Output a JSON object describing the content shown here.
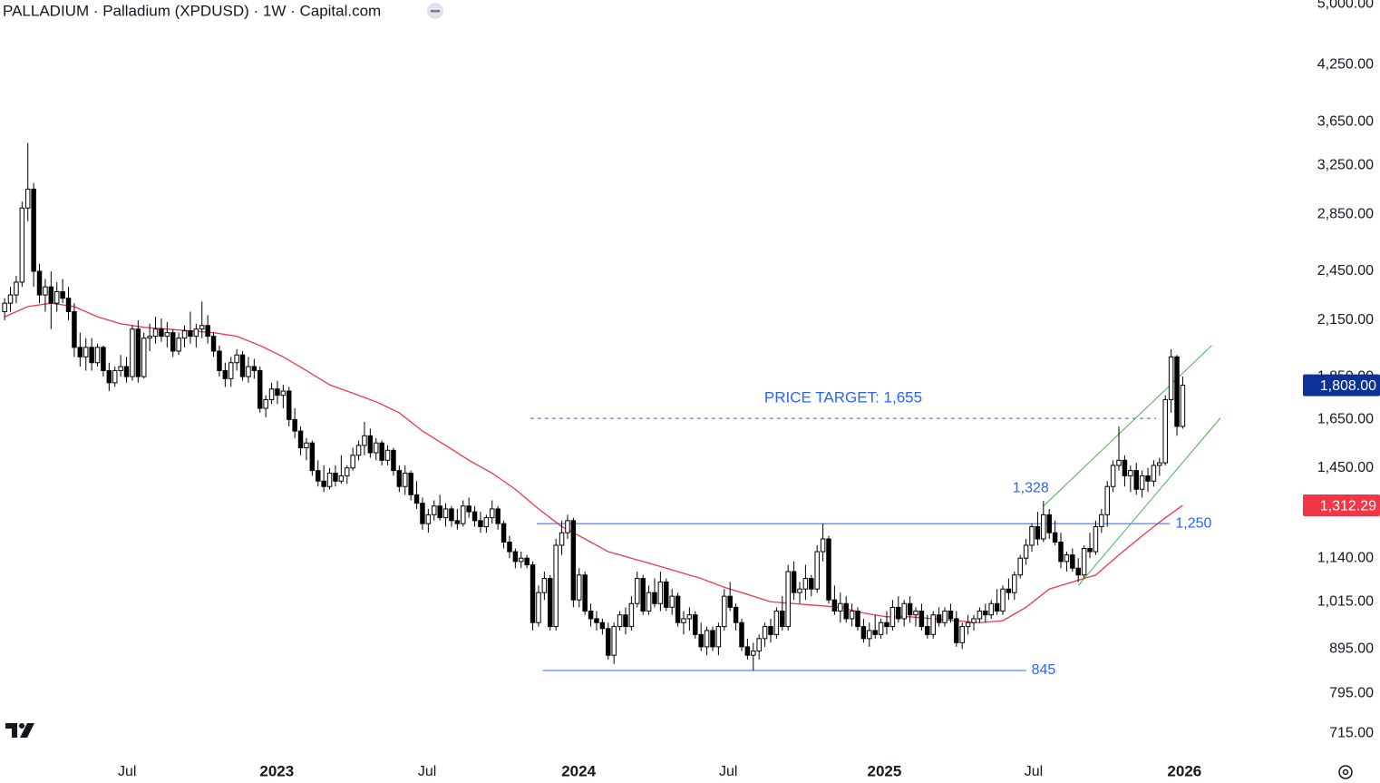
{
  "chart_data": {
    "type": "candlestick",
    "title": "PALLADIUM · Palladium (XPDUSD) · 1W · Capital.com",
    "log_scale": true,
    "up_color": "#ffffff",
    "down_color": "#000000",
    "wick_color": "#000000",
    "xlim": [
      -0.8,
      223.4
    ],
    "ylim": [
      678,
      5050
    ],
    "xticks": [
      {
        "value": 21.1,
        "label": "Jul"
      },
      {
        "value": 46.9,
        "label": "2023"
      },
      {
        "value": 72.8,
        "label": "Jul"
      },
      {
        "value": 98.9,
        "label": "2024"
      },
      {
        "value": 124.7,
        "label": "Jul"
      },
      {
        "value": 151.6,
        "label": "2025"
      },
      {
        "value": 177.3,
        "label": "Jul"
      },
      {
        "value": 203.3,
        "label": "2026"
      }
    ],
    "yticks": [
      {
        "value": 715,
        "label": "715.00"
      },
      {
        "value": 795,
        "label": "795.00"
      },
      {
        "value": 895,
        "label": "895.00"
      },
      {
        "value": 1015,
        "label": "1,015.00"
      },
      {
        "value": 1140,
        "label": "1,140.00"
      },
      {
        "value": 1450,
        "label": "1,450.00"
      },
      {
        "value": 1650,
        "label": "1,650.00"
      },
      {
        "value": 1850,
        "label": "1,850.00"
      },
      {
        "value": 2150,
        "label": "2,150.00"
      },
      {
        "value": 2450,
        "label": "2,450.00"
      },
      {
        "value": 2850,
        "label": "2,850.00"
      },
      {
        "value": 3250,
        "label": "3,250.00"
      },
      {
        "value": 3650,
        "label": "3,650.00"
      },
      {
        "value": 4250,
        "label": "4,250.00"
      },
      {
        "value": 5000,
        "label": "5,000.00"
      }
    ],
    "candles": [
      [
        2200,
        2280,
        2150,
        2250
      ],
      [
        2250,
        2350,
        2200,
        2300
      ],
      [
        2300,
        2420,
        2250,
        2380
      ],
      [
        2380,
        2950,
        2350,
        2900
      ],
      [
        2900,
        3450,
        2800,
        3050
      ],
      [
        3050,
        3100,
        2350,
        2450
      ],
      [
        2450,
        2500,
        2250,
        2300
      ],
      [
        2300,
        2400,
        2200,
        2350
      ],
      [
        2350,
        2450,
        2100,
        2250
      ],
      [
        2250,
        2380,
        2200,
        2320
      ],
      [
        2320,
        2400,
        2250,
        2280
      ],
      [
        2280,
        2350,
        2150,
        2200
      ],
      [
        2200,
        2250,
        1950,
        2000
      ],
      [
        2000,
        2080,
        1900,
        1950
      ],
      [
        1950,
        2050,
        1880,
        2000
      ],
      [
        2000,
        2050,
        1880,
        1920
      ],
      [
        1920,
        2020,
        1900,
        2000
      ],
      [
        2000,
        2010,
        1850,
        1880
      ],
      [
        1880,
        1920,
        1780,
        1820
      ],
      [
        1820,
        1900,
        1800,
        1880
      ],
      [
        1880,
        1960,
        1850,
        1900
      ],
      [
        1900,
        1950,
        1820,
        1850
      ],
      [
        1850,
        2120,
        1830,
        2100
      ],
      [
        2100,
        2150,
        1820,
        1850
      ],
      [
        1850,
        2080,
        1840,
        2050
      ],
      [
        2050,
        2130,
        1980,
        2060
      ],
      [
        2060,
        2170,
        2020,
        2100
      ],
      [
        2100,
        2160,
        2030,
        2060
      ],
      [
        2060,
        2140,
        2000,
        2080
      ],
      [
        2080,
        2100,
        1950,
        1980
      ],
      [
        1980,
        2080,
        1960,
        2050
      ],
      [
        2050,
        2120,
        2000,
        2090
      ],
      [
        2090,
        2200,
        2020,
        2060
      ],
      [
        2060,
        2130,
        2000,
        2100
      ],
      [
        2100,
        2260,
        2050,
        2120
      ],
      [
        2120,
        2180,
        2020,
        2060
      ],
      [
        2060,
        2080,
        1950,
        1980
      ],
      [
        1980,
        2010,
        1850,
        1880
      ],
      [
        1880,
        1920,
        1800,
        1840
      ],
      [
        1840,
        1950,
        1800,
        1920
      ],
      [
        1920,
        1990,
        1880,
        1960
      ],
      [
        1960,
        1980,
        1830,
        1850
      ],
      [
        1850,
        1950,
        1820,
        1900
      ],
      [
        1900,
        1940,
        1840,
        1880
      ],
      [
        1880,
        1900,
        1680,
        1700
      ],
      [
        1700,
        1760,
        1660,
        1740
      ],
      [
        1740,
        1820,
        1720,
        1790
      ],
      [
        1790,
        1830,
        1720,
        1760
      ],
      [
        1760,
        1810,
        1700,
        1780
      ],
      [
        1780,
        1800,
        1620,
        1650
      ],
      [
        1650,
        1700,
        1570,
        1600
      ],
      [
        1600,
        1620,
        1500,
        1530
      ],
      [
        1530,
        1570,
        1480,
        1550
      ],
      [
        1550,
        1560,
        1420,
        1440
      ],
      [
        1440,
        1480,
        1380,
        1400
      ],
      [
        1400,
        1460,
        1360,
        1380
      ],
      [
        1380,
        1450,
        1370,
        1430
      ],
      [
        1430,
        1460,
        1380,
        1400
      ],
      [
        1400,
        1500,
        1390,
        1420
      ],
      [
        1420,
        1460,
        1390,
        1450
      ],
      [
        1450,
        1530,
        1440,
        1500
      ],
      [
        1500,
        1560,
        1480,
        1540
      ],
      [
        1540,
        1640,
        1500,
        1580
      ],
      [
        1580,
        1610,
        1490,
        1510
      ],
      [
        1510,
        1570,
        1480,
        1550
      ],
      [
        1550,
        1560,
        1460,
        1480
      ],
      [
        1480,
        1540,
        1460,
        1520
      ],
      [
        1520,
        1530,
        1420,
        1440
      ],
      [
        1440,
        1460,
        1360,
        1380
      ],
      [
        1380,
        1460,
        1350,
        1430
      ],
      [
        1430,
        1440,
        1330,
        1350
      ],
      [
        1350,
        1400,
        1300,
        1320
      ],
      [
        1320,
        1340,
        1230,
        1250
      ],
      [
        1250,
        1300,
        1220,
        1280
      ],
      [
        1280,
        1330,
        1260,
        1310
      ],
      [
        1310,
        1350,
        1260,
        1270
      ],
      [
        1270,
        1320,
        1240,
        1300
      ],
      [
        1300,
        1310,
        1240,
        1260
      ],
      [
        1260,
        1300,
        1230,
        1250
      ],
      [
        1250,
        1330,
        1240,
        1310
      ],
      [
        1310,
        1340,
        1270,
        1290
      ],
      [
        1290,
        1310,
        1240,
        1260
      ],
      [
        1260,
        1290,
        1220,
        1240
      ],
      [
        1240,
        1280,
        1220,
        1270
      ],
      [
        1270,
        1330,
        1250,
        1300
      ],
      [
        1300,
        1310,
        1230,
        1250
      ],
      [
        1250,
        1260,
        1170,
        1190
      ],
      [
        1190,
        1210,
        1140,
        1160
      ],
      [
        1160,
        1170,
        1110,
        1130
      ],
      [
        1130,
        1160,
        1110,
        1140
      ],
      [
        1140,
        1150,
        1110,
        1120
      ],
      [
        1120,
        1130,
        940,
        960
      ],
      [
        960,
        1060,
        950,
        1040
      ],
      [
        1040,
        1100,
        1020,
        1080
      ],
      [
        1080,
        1090,
        940,
        950
      ],
      [
        950,
        1200,
        940,
        1180
      ],
      [
        1180,
        1260,
        1150,
        1220
      ],
      [
        1220,
        1280,
        1200,
        1260
      ],
      [
        1260,
        1270,
        1000,
        1020
      ],
      [
        1020,
        1110,
        1000,
        1090
      ],
      [
        1090,
        1100,
        980,
        990
      ],
      [
        990,
        1010,
        950,
        970
      ],
      [
        970,
        990,
        940,
        960
      ],
      [
        960,
        970,
        930,
        945
      ],
      [
        945,
        960,
        870,
        880
      ],
      [
        880,
        960,
        860,
        950
      ],
      [
        950,
        990,
        940,
        980
      ],
      [
        980,
        1000,
        930,
        950
      ],
      [
        950,
        1030,
        940,
        1010
      ],
      [
        1010,
        1100,
        1000,
        1080
      ],
      [
        1080,
        1090,
        980,
        990
      ],
      [
        990,
        1060,
        980,
        1040
      ],
      [
        1040,
        1080,
        1000,
        1010
      ],
      [
        1010,
        1100,
        990,
        1070
      ],
      [
        1070,
        1080,
        990,
        1000
      ],
      [
        1000,
        1050,
        980,
        1030
      ],
      [
        1030,
        1040,
        950,
        960
      ],
      [
        960,
        990,
        930,
        970
      ],
      [
        970,
        1000,
        940,
        980
      ],
      [
        980,
        990,
        920,
        930
      ],
      [
        930,
        960,
        890,
        900
      ],
      [
        900,
        950,
        880,
        940
      ],
      [
        940,
        950,
        890,
        900
      ],
      [
        900,
        960,
        880,
        950
      ],
      [
        950,
        1050,
        940,
        1030
      ],
      [
        1030,
        1070,
        990,
        1000
      ],
      [
        1000,
        1010,
        940,
        960
      ],
      [
        960,
        970,
        890,
        900
      ],
      [
        900,
        920,
        870,
        880
      ],
      [
        880,
        910,
        845,
        890
      ],
      [
        890,
        930,
        870,
        920
      ],
      [
        920,
        960,
        900,
        950
      ],
      [
        950,
        970,
        910,
        930
      ],
      [
        930,
        1000,
        920,
        990
      ],
      [
        990,
        1030,
        940,
        950
      ],
      [
        950,
        1120,
        940,
        1100
      ],
      [
        1100,
        1130,
        1020,
        1040
      ],
      [
        1040,
        1070,
        1010,
        1050
      ],
      [
        1050,
        1120,
        1020,
        1080
      ],
      [
        1080,
        1090,
        1030,
        1050
      ],
      [
        1050,
        1180,
        1040,
        1160
      ],
      [
        1160,
        1250,
        1130,
        1200
      ],
      [
        1200,
        1210,
        1010,
        1020
      ],
      [
        1020,
        1060,
        980,
        990
      ],
      [
        990,
        1040,
        960,
        1010
      ],
      [
        1010,
        1030,
        960,
        970
      ],
      [
        970,
        1010,
        950,
        990
      ],
      [
        990,
        1000,
        940,
        950
      ],
      [
        950,
        970,
        910,
        920
      ],
      [
        920,
        960,
        900,
        940
      ],
      [
        940,
        980,
        920,
        930
      ],
      [
        930,
        970,
        920,
        960
      ],
      [
        960,
        990,
        930,
        950
      ],
      [
        950,
        1020,
        940,
        1000
      ],
      [
        1000,
        1030,
        960,
        970
      ],
      [
        970,
        1020,
        950,
        1010
      ],
      [
        1010,
        1030,
        960,
        980
      ],
      [
        980,
        1000,
        950,
        990
      ],
      [
        990,
        1010,
        940,
        950
      ],
      [
        950,
        980,
        920,
        930
      ],
      [
        930,
        990,
        920,
        980
      ],
      [
        980,
        1000,
        950,
        960
      ],
      [
        960,
        1000,
        950,
        990
      ],
      [
        990,
        1010,
        960,
        970
      ],
      [
        970,
        990,
        900,
        910
      ],
      [
        910,
        960,
        895,
        950
      ],
      [
        950,
        980,
        930,
        960
      ],
      [
        960,
        980,
        940,
        970
      ],
      [
        970,
        1000,
        960,
        990
      ],
      [
        990,
        1010,
        960,
        980
      ],
      [
        980,
        1020,
        970,
        1010
      ],
      [
        1010,
        1050,
        980,
        990
      ],
      [
        990,
        1060,
        980,
        1050
      ],
      [
        1050,
        1080,
        1020,
        1040
      ],
      [
        1040,
        1100,
        1020,
        1090
      ],
      [
        1090,
        1150,
        1080,
        1140
      ],
      [
        1140,
        1200,
        1120,
        1180
      ],
      [
        1180,
        1250,
        1160,
        1240
      ],
      [
        1240,
        1290,
        1180,
        1200
      ],
      [
        1200,
        1328,
        1190,
        1280
      ],
      [
        1280,
        1300,
        1200,
        1220
      ],
      [
        1220,
        1260,
        1180,
        1190
      ],
      [
        1190,
        1220,
        1110,
        1130
      ],
      [
        1130,
        1160,
        1100,
        1150
      ],
      [
        1150,
        1170,
        1100,
        1110
      ],
      [
        1110,
        1140,
        1070,
        1090
      ],
      [
        1090,
        1180,
        1080,
        1170
      ],
      [
        1170,
        1220,
        1140,
        1160
      ],
      [
        1160,
        1260,
        1150,
        1240
      ],
      [
        1240,
        1300,
        1220,
        1280
      ],
      [
        1280,
        1400,
        1240,
        1380
      ],
      [
        1380,
        1480,
        1360,
        1460
      ],
      [
        1460,
        1620,
        1440,
        1480
      ],
      [
        1480,
        1500,
        1380,
        1420
      ],
      [
        1420,
        1460,
        1360,
        1440
      ],
      [
        1440,
        1470,
        1350,
        1370
      ],
      [
        1370,
        1440,
        1340,
        1420
      ],
      [
        1420,
        1450,
        1360,
        1400
      ],
      [
        1400,
        1480,
        1380,
        1460
      ],
      [
        1460,
        1490,
        1420,
        1470
      ],
      [
        1470,
        1760,
        1460,
        1740
      ],
      [
        1740,
        1990,
        1680,
        1950
      ],
      [
        1950,
        1960,
        1580,
        1620
      ],
      [
        1620,
        1850,
        1610,
        1808
      ]
    ],
    "moving_average": {
      "color": "#f23645",
      "x": [
        0,
        4,
        8,
        12,
        16,
        20,
        24,
        28,
        32,
        36,
        40,
        44,
        48,
        52,
        56,
        60,
        64,
        68,
        72,
        76,
        80,
        84,
        88,
        92,
        96,
        100,
        104,
        108,
        112,
        116,
        120,
        124,
        128,
        132,
        136,
        140,
        144,
        148,
        152,
        156,
        160,
        164,
        168,
        172,
        176,
        180,
        184,
        188,
        192,
        196,
        200,
        203
      ],
      "values": [
        2170,
        2230,
        2250,
        2230,
        2170,
        2130,
        2110,
        2100,
        2090,
        2080,
        2060,
        2010,
        1950,
        1880,
        1810,
        1770,
        1730,
        1680,
        1600,
        1540,
        1480,
        1430,
        1370,
        1300,
        1240,
        1200,
        1160,
        1140,
        1120,
        1100,
        1080,
        1055,
        1035,
        1015,
        1010,
        1005,
        1000,
        985,
        975,
        975,
        970,
        965,
        960,
        965,
        1000,
        1050,
        1070,
        1090,
        1150,
        1210,
        1270,
        1312.29
      ]
    },
    "channel": {
      "color": "#4caf50",
      "lines": [
        {
          "x": [
            179,
            208
          ],
          "values": [
            1310,
            2010
          ]
        },
        {
          "x": [
            185,
            209.5
          ],
          "values": [
            1060,
            1657
          ]
        }
      ]
    },
    "levels": [
      {
        "value": 1250,
        "label": "1,250",
        "x": [
          91.7,
          200.8
        ]
      },
      {
        "value": 845,
        "label": "845",
        "x": [
          92.7,
          176
        ]
      }
    ],
    "level_color": "#2962ff",
    "price_target": {
      "value": 1655,
      "label": "PRICE TARGET: 1,655",
      "x": [
        90.6,
        198.4
      ]
    },
    "peak": {
      "value": 1328,
      "label": "1,328",
      "x": 179
    },
    "last_price": {
      "value": 1808,
      "label": "1,808.00",
      "color": "#0c3299"
    },
    "ma_last": {
      "value": 1312.29,
      "label": "1,312.29",
      "color": "#f23645"
    }
  }
}
